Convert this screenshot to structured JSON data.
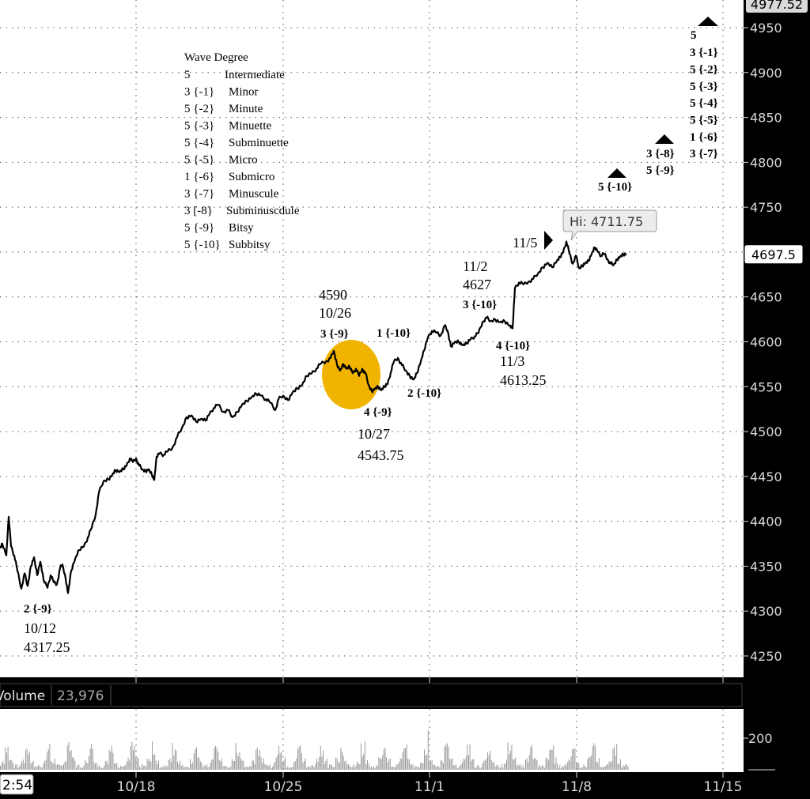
{
  "chart_data": {
    "type": "line",
    "price_axis": {
      "ticks": [
        4250,
        4300,
        4350,
        4400,
        4450,
        4500,
        4550,
        4600,
        4650,
        4700,
        4750,
        4800,
        4850,
        4900,
        4950
      ],
      "ylim": [
        4232,
        4986
      ],
      "top_label": "4977.52",
      "last_price_label": "4697.5",
      "last_price": 4697.5
    },
    "x_axis": {
      "ticks": [
        "10/18",
        "10/25",
        "11/1",
        "11/8",
        "11/15"
      ],
      "start_label": "2:54"
    },
    "price_series": {
      "name": "",
      "points": [
        [
          0,
          4370
        ],
        [
          3,
          4375
        ],
        [
          8,
          4362
        ],
        [
          11,
          4405
        ],
        [
          14,
          4372
        ],
        [
          18,
          4362
        ],
        [
          22,
          4345
        ],
        [
          27,
          4325
        ],
        [
          31,
          4342
        ],
        [
          35,
          4328
        ],
        [
          39,
          4350
        ],
        [
          43,
          4360
        ],
        [
          47,
          4340
        ],
        [
          51,
          4355
        ],
        [
          55,
          4335
        ],
        [
          60,
          4326
        ],
        [
          64,
          4340
        ],
        [
          68,
          4332
        ],
        [
          72,
          4330
        ],
        [
          76,
          4348
        ],
        [
          79,
          4352
        ],
        [
          83,
          4336
        ],
        [
          86,
          4320
        ],
        [
          90,
          4345
        ],
        [
          95,
          4358
        ],
        [
          100,
          4368
        ],
        [
          106,
          4372
        ],
        [
          111,
          4382
        ],
        [
          116,
          4393
        ],
        [
          121,
          4408
        ],
        [
          125,
          4432
        ],
        [
          131,
          4445
        ],
        [
          137,
          4447
        ],
        [
          142,
          4452
        ],
        [
          146,
          4457
        ],
        [
          151,
          4455
        ],
        [
          156,
          4458
        ],
        [
          160,
          4462
        ],
        [
          164,
          4470
        ],
        [
          168,
          4466
        ],
        [
          172,
          4470
        ],
        [
          176,
          4462
        ],
        [
          180,
          4458
        ],
        [
          184,
          4456
        ],
        [
          188,
          4458
        ],
        [
          192,
          4452
        ],
        [
          195,
          4446
        ],
        [
          198,
          4472
        ],
        [
          202,
          4476
        ],
        [
          207,
          4474
        ],
        [
          212,
          4478
        ],
        [
          218,
          4482
        ],
        [
          224,
          4494
        ],
        [
          230,
          4504
        ],
        [
          236,
          4516
        ],
        [
          242,
          4518
        ],
        [
          248,
          4511
        ],
        [
          254,
          4514
        ],
        [
          260,
          4512
        ],
        [
          265,
          4520
        ],
        [
          270,
          4526
        ],
        [
          276,
          4530
        ],
        [
          282,
          4522
        ],
        [
          288,
          4524
        ],
        [
          294,
          4516
        ],
        [
          300,
          4522
        ],
        [
          306,
          4530
        ],
        [
          312,
          4534
        ],
        [
          318,
          4538
        ],
        [
          324,
          4542
        ],
        [
          330,
          4540
        ],
        [
          336,
          4536
        ],
        [
          342,
          4532
        ],
        [
          348,
          4524
        ],
        [
          352,
          4536
        ],
        [
          358,
          4540
        ],
        [
          364,
          4535
        ],
        [
          370,
          4544
        ],
        [
          376,
          4548
        ],
        [
          382,
          4552
        ],
        [
          388,
          4562
        ],
        [
          394,
          4565
        ],
        [
          400,
          4570
        ],
        [
          406,
          4576
        ],
        [
          412,
          4578
        ],
        [
          418,
          4582
        ],
        [
          422,
          4590
        ],
        [
          426,
          4575
        ],
        [
          430,
          4568
        ],
        [
          434,
          4575
        ],
        [
          438,
          4570
        ],
        [
          442,
          4572
        ],
        [
          446,
          4565
        ],
        [
          450,
          4570
        ],
        [
          454,
          4562
        ],
        [
          458,
          4570
        ],
        [
          462,
          4565
        ],
        [
          466,
          4552
        ],
        [
          470,
          4545
        ],
        [
          474,
          4548
        ],
        [
          478,
          4550
        ],
        [
          482,
          4546
        ],
        [
          486,
          4550
        ],
        [
          490,
          4553
        ],
        [
          494,
          4566
        ],
        [
          498,
          4578
        ],
        [
          503,
          4582
        ],
        [
          508,
          4574
        ],
        [
          513,
          4568
        ],
        [
          518,
          4562
        ],
        [
          523,
          4558
        ],
        [
          527,
          4565
        ],
        [
          532,
          4578
        ],
        [
          536,
          4590
        ],
        [
          541,
          4605
        ],
        [
          546,
          4612
        ],
        [
          552,
          4610
        ],
        [
          557,
          4607
        ],
        [
          562,
          4618
        ],
        [
          566,
          4612
        ],
        [
          570,
          4595
        ],
        [
          575,
          4600
        ],
        [
          580,
          4600
        ],
        [
          585,
          4596
        ],
        [
          590,
          4598
        ],
        [
          595,
          4603
        ],
        [
          600,
          4606
        ],
        [
          605,
          4610
        ],
        [
          610,
          4622
        ],
        [
          615,
          4627
        ],
        [
          620,
          4623
        ],
        [
          626,
          4625
        ],
        [
          632,
          4622
        ],
        [
          638,
          4623
        ],
        [
          644,
          4618
        ],
        [
          648,
          4615
        ],
        [
          651,
          4660
        ],
        [
          656,
          4666
        ],
        [
          662,
          4664
        ],
        [
          668,
          4667
        ],
        [
          674,
          4670
        ],
        [
          680,
          4676
        ],
        [
          686,
          4683
        ],
        [
          692,
          4688
        ],
        [
          698,
          4683
        ],
        [
          704,
          4690
        ],
        [
          708,
          4694
        ],
        [
          712,
          4700
        ],
        [
          716,
          4711.75
        ],
        [
          720,
          4698
        ],
        [
          724,
          4687
        ],
        [
          728,
          4696
        ],
        [
          732,
          4682
        ],
        [
          736,
          4685
        ],
        [
          740,
          4688
        ],
        [
          744,
          4690
        ],
        [
          748,
          4698
        ],
        [
          752,
          4705
        ],
        [
          756,
          4700
        ],
        [
          760,
          4696
        ],
        [
          764,
          4698
        ],
        [
          768,
          4692
        ],
        [
          772,
          4687
        ],
        [
          776,
          4686
        ],
        [
          780,
          4692
        ],
        [
          784,
          4695
        ],
        [
          788,
          4697.5
        ],
        [
          792,
          4697.5
        ]
      ]
    },
    "legend_box": {
      "title": "Wave Degree",
      "rows": [
        [
          "5",
          "Intermediate"
        ],
        [
          "3 {-1}",
          "Minor"
        ],
        [
          "5 {-2}",
          "Minute"
        ],
        [
          "5 {-3}",
          "Minuette"
        ],
        [
          "5 {-4}",
          "Subminuette"
        ],
        [
          "5 {-5}",
          "Micro"
        ],
        [
          "1 {-6}",
          "Submicro"
        ],
        [
          "3 {-7}",
          "Minuscule"
        ],
        [
          "3 [-8}",
          "Subminuscdule"
        ],
        [
          "5 {-9}",
          "Bitsy"
        ],
        [
          "5 {-10}",
          "Subbitsy"
        ]
      ]
    },
    "annotations": {
      "hi_callout": "Hi: 4711.75",
      "wave_2_9": "2 {-9}",
      "date_10_12": "10/12",
      "price_4317": "4317.25",
      "price_4590": "4590",
      "date_10_26": "10/26",
      "wave_3_9": "3 {-9}",
      "wave_4_9": "4 {-9}",
      "date_10_27": "10/27",
      "price_4543": "4543.75",
      "wave_1_10": "1 {-10}",
      "wave_2_10": "2 {-10}",
      "date_11_2": "11/2",
      "price_4627": "4627",
      "wave_3_10": "3 {-10}",
      "wave_4_10": "4 {-10}",
      "date_11_3": "11/3",
      "price_4613": "4613.25",
      "date_11_5": "11/5",
      "wave_5_10": "5 {-10}",
      "proj_3_8": "3 {-8}",
      "proj_5_9": "5 {-9}",
      "stack_top": "5",
      "stack_left": [
        "3 {-1}",
        "5 {-2}",
        "5 {-3}",
        "5 {-4}",
        "5 {-5}",
        "1 {-6}"
      ],
      "stack_right": "3 {-7}"
    },
    "volume": {
      "label": "Volume",
      "value": "23,976",
      "ticks": [
        "200"
      ],
      "ylim": [
        0,
        260
      ],
      "spike_value": 250
    }
  },
  "colors": {
    "background": "#ffffff",
    "frame": "#000000",
    "price_line": "#000000",
    "highlight": "#f0b400",
    "volume_bars": "#9a9a9a",
    "axis_text": "#d8d8d8",
    "callout_bg": "#e8e8e8"
  }
}
